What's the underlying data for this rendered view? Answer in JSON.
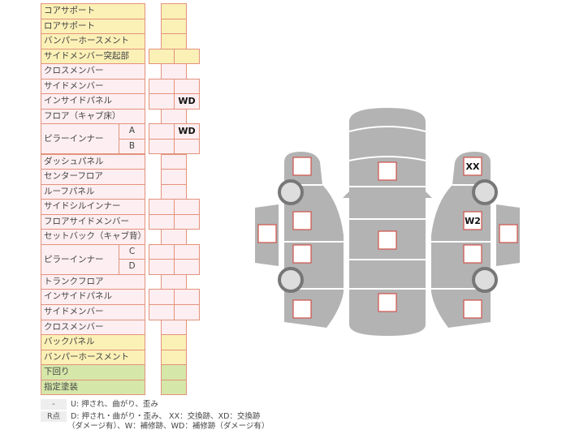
{
  "rows": [
    {
      "label": "コアサポート",
      "color": "yellow",
      "cells": 1
    },
    {
      "label": "ロアサポート",
      "color": "yellow",
      "cells": 1
    },
    {
      "label": "バンパーホースメント",
      "color": "yellow",
      "cells": 1
    },
    {
      "label": "サイドメンバー突起部",
      "color": "yellow",
      "cells": 2
    },
    {
      "label": "クロスメンバー",
      "color": "pink",
      "cells": 1
    },
    {
      "label": "サイドメンバー",
      "color": "pink",
      "cells": 2
    },
    {
      "label": "インサイドパネル",
      "color": "pink",
      "cells": 2,
      "right": "WD"
    },
    {
      "label": "フロア（キャブ床）",
      "color": "pink",
      "cells": 1
    },
    {
      "label": "ピラーインナー",
      "sub": "A",
      "color": "pink",
      "cells": 2,
      "right": "WD"
    },
    {
      "label": "",
      "sub": "B",
      "color": "pink",
      "cells": 2
    },
    {
      "label": "ダッシュパネル",
      "color": "pink",
      "cells": 1
    },
    {
      "label": "センターフロア",
      "color": "pink",
      "cells": 1
    },
    {
      "label": "ルーフパネル",
      "color": "pink",
      "cells": 1
    },
    {
      "label": "サイドシルインナー",
      "color": "pink",
      "cells": 2
    },
    {
      "label": "フロアサイドメンバー",
      "color": "pink",
      "cells": 2
    },
    {
      "label": "セットバック（キャブ背）",
      "color": "pink",
      "cells": 1
    },
    {
      "label": "ピラーインナー",
      "sub": "C",
      "color": "pink",
      "cells": 2
    },
    {
      "label": "",
      "sub": "D",
      "color": "pink",
      "cells": 2
    },
    {
      "label": "トランクフロア",
      "color": "pink",
      "cells": 1
    },
    {
      "label": "インサイドパネル",
      "color": "pink",
      "cells": 2
    },
    {
      "label": "サイドメンバー",
      "color": "pink",
      "cells": 2
    },
    {
      "label": "クロスメンバー",
      "color": "pink",
      "cells": 1
    },
    {
      "label": "バックパネル",
      "color": "yellow",
      "cells": 1
    },
    {
      "label": "バンパーホースメント",
      "color": "yellow",
      "cells": 1
    },
    {
      "label": "下回り",
      "color": "green",
      "cells": 1
    },
    {
      "label": "指定塗装",
      "color": "green",
      "cells": 1
    }
  ],
  "colors": {
    "yellow": "#fbf0b6",
    "pink": "#fdeef1",
    "green": "#d5e7a9",
    "border": "#e2937c",
    "car": "#b3b3b3",
    "mark": "#d0524a"
  },
  "diagram": {
    "right_front_fender": "XX",
    "right_front_door": "W2"
  },
  "legend": [
    {
      "key": "-",
      "text": "U: 押され、曲がり、歪み"
    },
    {
      "key": "R点",
      "text": "D: 押され・曲がり・歪み、 XX：交換跡、XD：交換跡",
      "text2": "（ダメージ有）、W：補修跡、WD：補修跡（ダメージ有）"
    }
  ]
}
